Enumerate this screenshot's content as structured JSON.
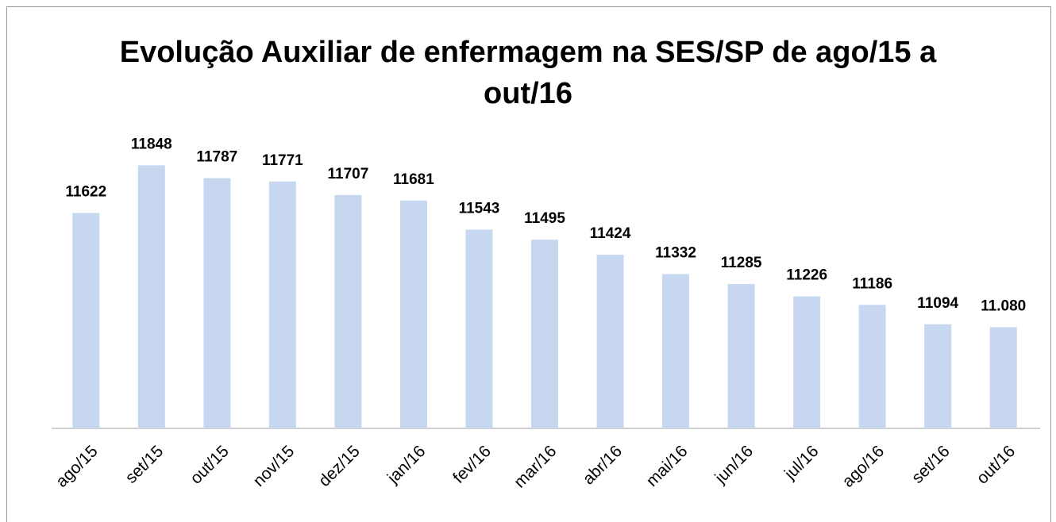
{
  "chart_data": {
    "type": "bar",
    "title": "Evolução Auxiliar de enfermagem na SES/SP de ago/15 a out/16",
    "categories": [
      "ago/15",
      "set/15",
      "out/15",
      "nov/15",
      "dez/15",
      "jan/16",
      "fev/16",
      "mar/16",
      "abr/16",
      "mai/16",
      "jun/16",
      "jul/16",
      "ago/16",
      "set/16",
      "out/16"
    ],
    "values": [
      11622,
      11848,
      11787,
      11771,
      11707,
      11681,
      11543,
      11495,
      11424,
      11332,
      11285,
      11226,
      11186,
      11094,
      11080
    ],
    "value_labels": [
      "11622",
      "11848",
      "11787",
      "11771",
      "11707",
      "11681",
      "11543",
      "11495",
      "11424",
      "11332",
      "11285",
      "11226",
      "11186",
      "11094",
      "11.080"
    ],
    "color": "#c6d7ef",
    "ylim": [
      10600,
      12000
    ]
  }
}
